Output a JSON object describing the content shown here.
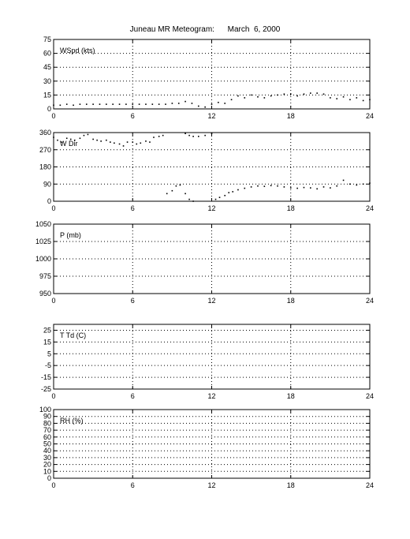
{
  "title": "Juneau MR Meteogram:      March  6, 2000",
  "chart_data": [
    {
      "type": "scatter",
      "label": "WSpd (kts)",
      "xlim": [
        0,
        24
      ],
      "xticks": [
        0,
        6,
        12,
        18,
        24
      ],
      "ylim": [
        0,
        75
      ],
      "yticks": [
        0,
        15,
        30,
        45,
        60,
        75
      ],
      "grid": true,
      "series": [
        {
          "values": [
            [
              0,
              4
            ],
            [
              0.5,
              4
            ],
            [
              1,
              5
            ],
            [
              1.5,
              4
            ],
            [
              2,
              5
            ],
            [
              2.5,
              5
            ],
            [
              3,
              5
            ],
            [
              3.5,
              5
            ],
            [
              4,
              5
            ],
            [
              4.5,
              5
            ],
            [
              5,
              5
            ],
            [
              5.5,
              5
            ],
            [
              6,
              5
            ],
            [
              6.5,
              5
            ],
            [
              7,
              5
            ],
            [
              7.5,
              5
            ],
            [
              8,
              5
            ],
            [
              8.5,
              5
            ],
            [
              9,
              6
            ],
            [
              9.5,
              6
            ],
            [
              10,
              8
            ],
            [
              10.5,
              6
            ],
            [
              11,
              3
            ],
            [
              11.5,
              2
            ],
            [
              12,
              5
            ],
            [
              12.5,
              7
            ],
            [
              13,
              6
            ],
            [
              13.5,
              10
            ],
            [
              14,
              14
            ],
            [
              14.5,
              12
            ],
            [
              15,
              15
            ],
            [
              15.5,
              13
            ],
            [
              16,
              12
            ],
            [
              16.5,
              14
            ],
            [
              17,
              15
            ],
            [
              17.5,
              16
            ],
            [
              18,
              16
            ],
            [
              18.5,
              14
            ],
            [
              19,
              16
            ],
            [
              19.5,
              17
            ],
            [
              20,
              17
            ],
            [
              20.5,
              16
            ],
            [
              21,
              12
            ],
            [
              21.5,
              11
            ],
            [
              22,
              13
            ],
            [
              22.5,
              10
            ],
            [
              23,
              12
            ],
            [
              23.5,
              9
            ],
            [
              24,
              10
            ]
          ]
        }
      ]
    },
    {
      "type": "scatter",
      "label": "W Dir",
      "xlim": [
        0,
        24
      ],
      "xticks": [
        0,
        6,
        12,
        18,
        24
      ],
      "ylim": [
        0,
        360
      ],
      "yticks": [
        0,
        90,
        180,
        270,
        360
      ],
      "grid": true,
      "series": [
        {
          "values": [
            [
              0,
              335
            ],
            [
              0.3,
              320
            ],
            [
              0.6,
              310
            ],
            [
              1,
              330
            ],
            [
              1.3,
              325
            ],
            [
              1.6,
              320
            ],
            [
              2,
              330
            ],
            [
              2.3,
              345
            ],
            [
              2.6,
              350
            ],
            [
              3,
              325
            ],
            [
              3.3,
              320
            ],
            [
              3.6,
              315
            ],
            [
              4,
              320
            ],
            [
              4.3,
              310
            ],
            [
              4.6,
              305
            ],
            [
              5,
              300
            ],
            [
              5.3,
              290
            ],
            [
              5.6,
              310
            ],
            [
              6,
              310
            ],
            [
              6.3,
              300
            ],
            [
              6.6,
              305
            ],
            [
              7,
              315
            ],
            [
              7.3,
              310
            ],
            [
              7.6,
              335
            ],
            [
              8,
              340
            ],
            [
              8.3,
              345
            ],
            [
              8.6,
              40
            ],
            [
              9,
              55
            ],
            [
              9.3,
              80
            ],
            [
              9.6,
              85
            ],
            [
              10,
              40
            ],
            [
              10.3,
              10
            ],
            [
              10.6,
              0
            ],
            [
              10,
              355
            ],
            [
              10.3,
              345
            ],
            [
              10.6,
              340
            ],
            [
              11,
              340
            ],
            [
              11.5,
              345
            ],
            [
              12,
              355
            ],
            [
              12.3,
              10
            ],
            [
              12.6,
              20
            ],
            [
              13,
              30
            ],
            [
              13.3,
              45
            ],
            [
              13.6,
              50
            ],
            [
              14,
              60
            ],
            [
              14.5,
              68
            ],
            [
              15,
              75
            ],
            [
              15.5,
              80
            ],
            [
              16,
              78
            ],
            [
              16.5,
              82
            ],
            [
              17,
              80
            ],
            [
              17.5,
              75
            ],
            [
              18,
              70
            ],
            [
              18.5,
              68
            ],
            [
              19,
              72
            ],
            [
              19.5,
              70
            ],
            [
              20,
              65
            ],
            [
              20.5,
              75
            ],
            [
              21,
              70
            ],
            [
              21.5,
              80
            ],
            [
              22,
              110
            ],
            [
              22.5,
              90
            ],
            [
              23,
              85
            ],
            [
              23.5,
              90
            ],
            [
              24,
              95
            ]
          ]
        }
      ]
    },
    {
      "type": "line",
      "label": "P (mb)",
      "xlim": [
        0,
        24
      ],
      "xticks": [
        0,
        6,
        12,
        18,
        24
      ],
      "ylim": [
        950,
        1050
      ],
      "yticks": [
        950,
        975,
        1000,
        1025,
        1050
      ],
      "grid": true,
      "series": []
    },
    {
      "type": "line",
      "label": "T Td (C)",
      "xlim": [
        0,
        24
      ],
      "xticks": [
        0,
        6,
        12,
        18,
        24
      ],
      "ylim": [
        -25,
        30
      ],
      "yticks": [
        -25,
        -15,
        -5,
        5,
        15,
        25
      ],
      "grid": true,
      "series": []
    },
    {
      "type": "line",
      "label": "RH (%)",
      "xlim": [
        0,
        24
      ],
      "xticks": [
        0,
        6,
        12,
        18,
        24
      ],
      "ylim": [
        0,
        100
      ],
      "yticks": [
        0,
        10,
        20,
        30,
        40,
        50,
        60,
        70,
        80,
        90,
        100
      ],
      "grid": true,
      "series": []
    }
  ]
}
